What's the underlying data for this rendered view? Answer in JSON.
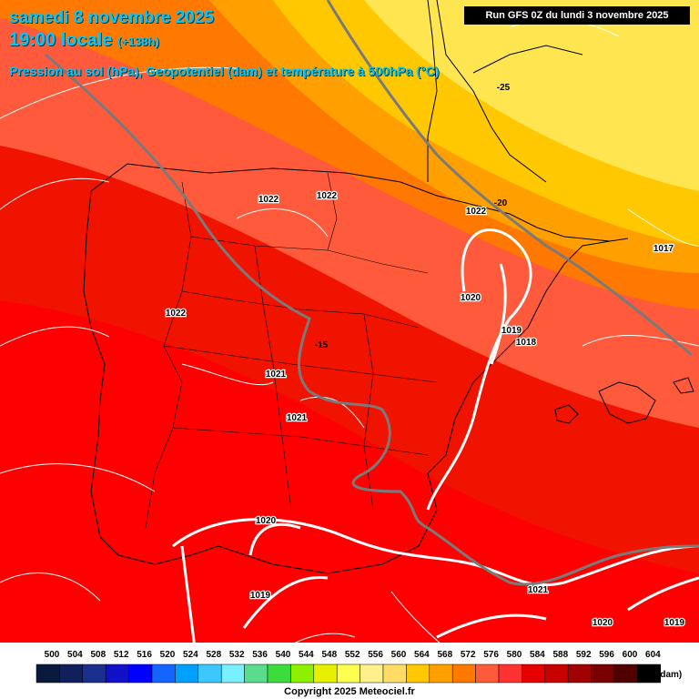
{
  "header": {
    "date": "samedi 8 novembre 2025",
    "time": "19:00 locale",
    "lead": "(+138h)",
    "subtitle": "Pression au sol (hPa), Geopotentiel (dam) et température à 500hPa (°C)",
    "run": "Run GFS 0Z du lundi 3 novembre 2025"
  },
  "isobar_labels": [
    "1022",
    "1022",
    "1022",
    "1022",
    "1021",
    "1021",
    "1020",
    "1020",
    "1019",
    "1019",
    "1018",
    "1017",
    "1020",
    "1021",
    "1019"
  ],
  "temperature_labels": [
    "-25",
    "-20",
    "-15"
  ],
  "legend": {
    "values": [
      "500",
      "504",
      "508",
      "512",
      "516",
      "520",
      "524",
      "528",
      "532",
      "536",
      "540",
      "544",
      "548",
      "552",
      "556",
      "560",
      "564",
      "568",
      "572",
      "576",
      "580",
      "584",
      "588",
      "592",
      "596",
      "600",
      "604"
    ],
    "colors": [
      "#0a1a3c",
      "#10205a",
      "#1a2e8c",
      "#1010c8",
      "#0000ff",
      "#1464ff",
      "#00a0ff",
      "#3cc8ff",
      "#78f0ff",
      "#5adc8c",
      "#3cdc3c",
      "#8cf000",
      "#e6f000",
      "#ffff50",
      "#fff08c",
      "#ffdc64",
      "#ffc800",
      "#ffa000",
      "#ff7800",
      "#ff5a3c",
      "#ff3232",
      "#e60000",
      "#c80000",
      "#a00000",
      "#780000",
      "#500000",
      "#000000"
    ],
    "unit": "(dam)"
  },
  "copyright": "Copyright 2025 Meteociel.fr"
}
